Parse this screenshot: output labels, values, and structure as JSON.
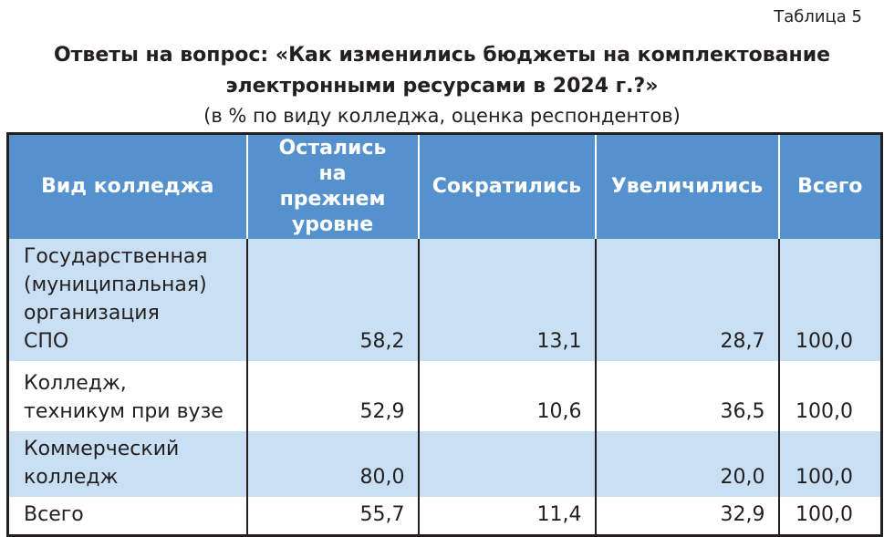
{
  "label": "Таблица 5",
  "title_line1": "Ответы на вопрос: «Как изменились бюджеты на комплектование",
  "title_line2": "электронными ресурсами в 2024 г.?»",
  "subtitle": "(в % по виду колледжа, оценка респондентов)",
  "colors": {
    "header_bg": "#5592cd",
    "alt_row_bg": "#c9dff3"
  },
  "headers": [
    "Вид колледжа",
    "Остались на прежнем уровне",
    "Сократились",
    "Увеличились",
    "Всего"
  ],
  "rows": [
    [
      "Государственная (муниципальная) организация СПО",
      "58,2",
      "13,1",
      "28,7",
      "100,0"
    ],
    [
      "Колледж, техникум при вузе",
      "52,9",
      "10,6",
      "36,5",
      "100,0"
    ],
    [
      "Коммерческий колледж",
      "80,0",
      "",
      "20,0",
      "100,0"
    ],
    [
      "Всего",
      "55,7",
      "11,4",
      "32,9",
      "100,0"
    ]
  ]
}
